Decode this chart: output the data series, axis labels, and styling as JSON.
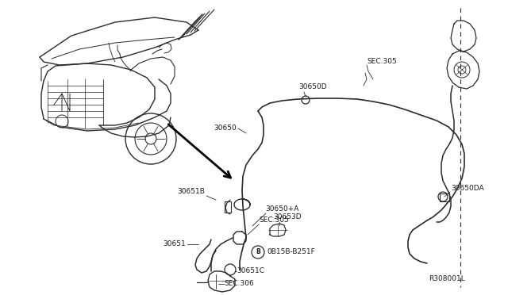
{
  "bg_color": "#ffffff",
  "line_color": "#2a2a2a",
  "text_color": "#1a1a1a",
  "diagram_id": "R308001L",
  "labels": {
    "SEC305_top": "SEC.305",
    "30650D": "30650D",
    "30650": "30650",
    "SEC305_mid": "SEC.305",
    "30650A": "30650+A",
    "30651B": "30651B",
    "30651": "30651",
    "30651C": "30651C",
    "SEC306": "SEC.306",
    "30653D": "30653D",
    "bolt": "0B15B-B251F",
    "30650DA": "30650DA",
    "diagram_id": "R308001L"
  }
}
